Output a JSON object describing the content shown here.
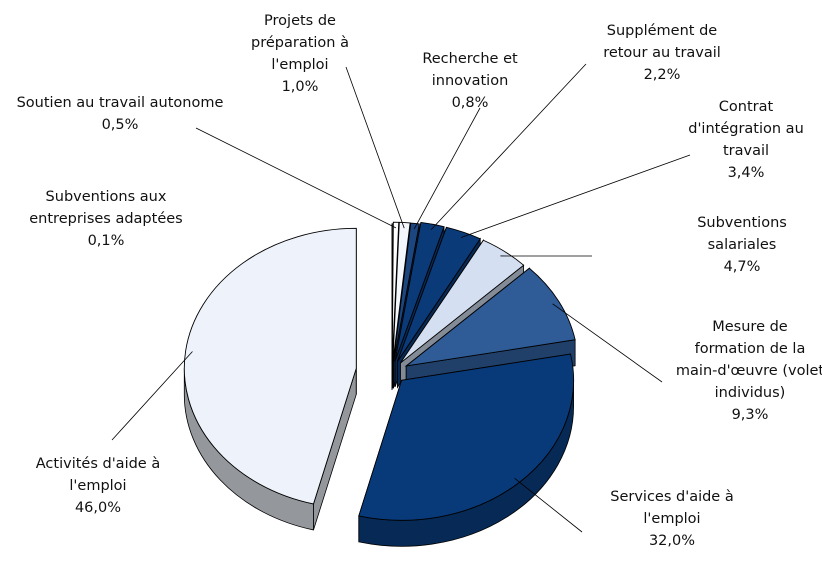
{
  "chart_data": {
    "type": "pie",
    "categories": [
      "Subventions aux entreprises adaptées",
      "Soutien au travail autonome",
      "Projets de préparation à l'emploi",
      "Recherche et innovation",
      "Supplément de retour au travail",
      "Contrat d'intégration au travail",
      "Subventions salariales",
      "Mesure de formation de la main-d'œuvre (volet individus)",
      "Services d'aide à l'emploi",
      "Activités d'aide à l'emploi"
    ],
    "values": [
      0.1,
      0.5,
      1.0,
      0.8,
      2.2,
      3.4,
      4.7,
      9.3,
      32.0,
      46.0
    ],
    "value_labels": [
      "0,1%",
      "0,5%",
      "1,0%",
      "0,8%",
      "2,2%",
      "3,4%",
      "4,7%",
      "9,3%",
      "32,0%",
      "46,0%"
    ],
    "colors": [
      "#ffffff",
      "#ffffff",
      "#f4f7fc",
      "#1c4680",
      "#0a3a78",
      "#0a3a78",
      "#d4e0f2",
      "#2f5b96",
      "#083a7a",
      "#eef3fb"
    ]
  }
}
